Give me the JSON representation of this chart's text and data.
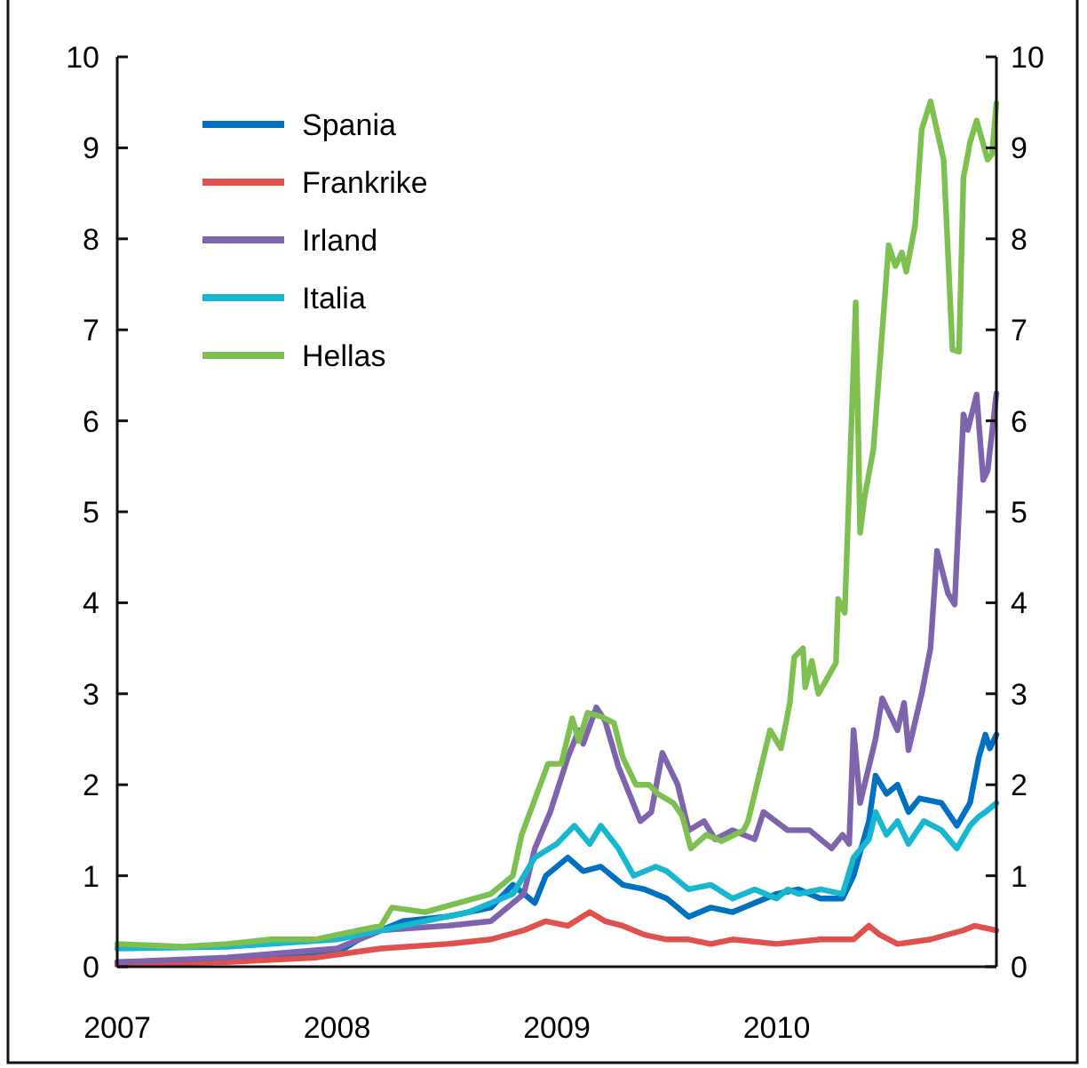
{
  "chart_data": {
    "type": "line",
    "xlim": [
      2007,
      2011
    ],
    "xticks": [
      2007,
      2008,
      2009,
      2010
    ],
    "ylim": [
      0,
      10
    ],
    "yticks": [
      0,
      1,
      2,
      3,
      4,
      5,
      6,
      7,
      8,
      9,
      10
    ],
    "y2lim": [
      0,
      10
    ],
    "y2ticks": [
      0,
      1,
      2,
      3,
      4,
      5,
      6,
      7,
      8,
      9,
      10
    ],
    "grid": false,
    "legend": "top left",
    "marker": "none",
    "line_style": "solid",
    "series": [
      {
        "name": "Spania",
        "color": "#0070c0",
        "x": [
          2007,
          2007.5,
          2007.9,
          2008.0,
          2008.1,
          2008.3,
          2008.5,
          2008.7,
          2008.8,
          2008.9,
          2008.95,
          2009.05,
          2009.12,
          2009.2,
          2009.3,
          2009.4,
          2009.5,
          2009.6,
          2009.7,
          2009.8,
          2009.9,
          2010.0,
          2010.1,
          2010.2,
          2010.3,
          2010.35,
          2010.42,
          2010.45,
          2010.5,
          2010.55,
          2010.6,
          2010.65,
          2010.75,
          2010.82,
          2010.88,
          2010.92,
          2010.95,
          2010.97,
          2011.0
        ],
        "values": [
          0.05,
          0.08,
          0.15,
          0.15,
          0.3,
          0.5,
          0.55,
          0.65,
          0.9,
          0.7,
          1.0,
          1.2,
          1.05,
          1.1,
          0.9,
          0.85,
          0.75,
          0.55,
          0.65,
          0.6,
          0.7,
          0.8,
          0.85,
          0.75,
          0.75,
          1.0,
          1.6,
          2.1,
          1.9,
          2.0,
          1.7,
          1.85,
          1.8,
          1.55,
          1.8,
          2.3,
          2.55,
          2.4,
          2.55
        ]
      },
      {
        "name": "Frankrike",
        "color": "#e0504c",
        "x": [
          2007,
          2007.5,
          2007.9,
          2008.2,
          2008.5,
          2008.7,
          2008.85,
          2008.95,
          2009.05,
          2009.15,
          2009.22,
          2009.3,
          2009.4,
          2009.5,
          2009.6,
          2009.7,
          2009.8,
          2010.0,
          2010.2,
          2010.35,
          2010.42,
          2010.47,
          2010.55,
          2010.7,
          2010.85,
          2010.9,
          2011.0
        ],
        "values": [
          0.02,
          0.05,
          0.1,
          0.2,
          0.25,
          0.3,
          0.4,
          0.5,
          0.45,
          0.6,
          0.5,
          0.45,
          0.35,
          0.3,
          0.3,
          0.25,
          0.3,
          0.25,
          0.3,
          0.3,
          0.45,
          0.35,
          0.25,
          0.3,
          0.4,
          0.45,
          0.4
        ]
      },
      {
        "name": "Irland",
        "color": "#7f63ad",
        "x": [
          2007,
          2007.5,
          2008.0,
          2008.2,
          2008.5,
          2008.7,
          2008.85,
          2008.9,
          2008.97,
          2009.05,
          2009.1,
          2009.12,
          2009.18,
          2009.22,
          2009.28,
          2009.33,
          2009.38,
          2009.43,
          2009.48,
          2009.55,
          2009.6,
          2009.67,
          2009.72,
          2009.8,
          2009.9,
          2009.94,
          2010.05,
          2010.15,
          2010.25,
          2010.3,
          2010.33,
          2010.35,
          2010.38,
          2010.45,
          2010.48,
          2010.55,
          2010.58,
          2010.6,
          2010.66,
          2010.7,
          2010.73,
          2010.78,
          2010.81,
          2010.85,
          2010.87,
          2010.91,
          2010.94,
          2010.96,
          2011.0
        ],
        "values": [
          0.05,
          0.1,
          0.2,
          0.4,
          0.45,
          0.5,
          0.8,
          1.3,
          1.7,
          2.3,
          2.6,
          2.45,
          2.85,
          2.7,
          2.2,
          1.9,
          1.6,
          1.7,
          2.35,
          2.0,
          1.5,
          1.6,
          1.4,
          1.5,
          1.4,
          1.7,
          1.5,
          1.5,
          1.3,
          1.45,
          1.35,
          2.6,
          1.8,
          2.5,
          2.95,
          2.6,
          2.9,
          2.38,
          3.0,
          3.5,
          4.57,
          4.1,
          3.98,
          6.07,
          5.9,
          6.29,
          5.35,
          5.45,
          6.3
        ]
      },
      {
        "name": "Italia",
        "color": "#17b7cf",
        "x": [
          2007,
          2007.5,
          2008.0,
          2008.3,
          2008.6,
          2008.8,
          2008.9,
          2009.0,
          2009.08,
          2009.15,
          2009.2,
          2009.28,
          2009.35,
          2009.45,
          2009.5,
          2009.6,
          2009.7,
          2009.8,
          2009.9,
          2010.0,
          2010.05,
          2010.1,
          2010.2,
          2010.3,
          2010.35,
          2010.42,
          2010.45,
          2010.5,
          2010.55,
          2010.6,
          2010.67,
          2010.75,
          2010.82,
          2010.88,
          2010.92,
          2010.95,
          2011.0
        ],
        "values": [
          0.2,
          0.22,
          0.3,
          0.45,
          0.6,
          0.8,
          1.2,
          1.35,
          1.55,
          1.35,
          1.55,
          1.3,
          1.0,
          1.1,
          1.05,
          0.85,
          0.9,
          0.75,
          0.85,
          0.75,
          0.85,
          0.8,
          0.85,
          0.8,
          1.2,
          1.4,
          1.7,
          1.45,
          1.6,
          1.35,
          1.6,
          1.5,
          1.3,
          1.55,
          1.65,
          1.7,
          1.8
        ]
      },
      {
        "name": "Hellas",
        "color": "#7dc050",
        "x": [
          2007,
          2007.3,
          2007.5,
          2007.7,
          2007.9,
          2008.0,
          2008.2,
          2008.25,
          2008.4,
          2008.55,
          2008.7,
          2008.8,
          2008.84,
          2008.96,
          2009.02,
          2009.07,
          2009.1,
          2009.14,
          2009.2,
          2009.26,
          2009.3,
          2009.36,
          2009.42,
          2009.46,
          2009.53,
          2009.57,
          2009.61,
          2009.68,
          2009.75,
          2009.85,
          2009.87,
          2009.91,
          2009.97,
          2010.02,
          2010.06,
          2010.08,
          2010.12,
          2010.13,
          2010.16,
          2010.19,
          2010.27,
          2010.28,
          2010.31,
          2010.36,
          2010.38,
          2010.4,
          2010.44,
          2010.51,
          2010.54,
          2010.57,
          2010.59,
          2010.63,
          2010.66,
          2010.7,
          2010.76,
          2010.8,
          2010.83,
          2010.85,
          2010.88,
          2010.91,
          2010.96,
          2010.98,
          2011.0
        ],
        "values": [
          0.25,
          0.22,
          0.25,
          0.3,
          0.3,
          0.35,
          0.45,
          0.65,
          0.6,
          0.7,
          0.8,
          1.0,
          1.45,
          2.23,
          2.23,
          2.73,
          2.48,
          2.79,
          2.75,
          2.68,
          2.3,
          2.0,
          2.0,
          1.9,
          1.8,
          1.66,
          1.3,
          1.45,
          1.38,
          1.5,
          1.6,
          2.0,
          2.6,
          2.4,
          2.9,
          3.4,
          3.5,
          3.07,
          3.36,
          3.0,
          3.34,
          4.04,
          3.89,
          7.3,
          4.77,
          5.16,
          5.68,
          7.93,
          7.7,
          7.85,
          7.64,
          8.15,
          9.2,
          9.51,
          8.87,
          6.78,
          6.76,
          8.67,
          9.06,
          9.3,
          8.87,
          8.93,
          9.49
        ]
      }
    ]
  }
}
